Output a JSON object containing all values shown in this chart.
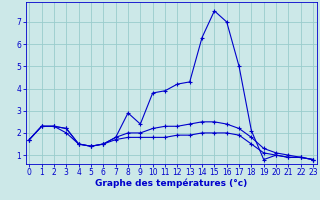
{
  "xlabel": "Graphe des températures (°c)",
  "background_color": "#cce8e8",
  "grid_color": "#99cccc",
  "line_color": "#0000cc",
  "x_ticks": [
    0,
    1,
    2,
    3,
    4,
    5,
    6,
    7,
    8,
    9,
    10,
    11,
    12,
    13,
    14,
    15,
    16,
    17,
    18,
    19,
    20,
    21,
    22,
    23
  ],
  "y_ticks": [
    1,
    2,
    3,
    4,
    5,
    6,
    7
  ],
  "xlim": [
    -0.3,
    23.3
  ],
  "ylim": [
    0.6,
    7.9
  ],
  "series1_x": [
    0,
    1,
    2,
    3,
    4,
    5,
    6,
    7,
    8,
    9,
    10,
    11,
    12,
    13,
    14,
    15,
    16,
    17,
    18,
    19,
    20,
    21,
    22,
    23
  ],
  "series1_y": [
    1.7,
    2.3,
    2.3,
    2.2,
    1.5,
    1.4,
    1.5,
    1.8,
    2.9,
    2.4,
    3.8,
    3.9,
    4.2,
    4.3,
    6.3,
    7.5,
    7.0,
    5.0,
    2.1,
    0.8,
    1.0,
    0.9,
    0.9,
    0.8
  ],
  "series2_x": [
    0,
    1,
    2,
    3,
    4,
    5,
    6,
    7,
    8,
    9,
    10,
    11,
    12,
    13,
    14,
    15,
    16,
    17,
    18,
    19,
    20,
    21,
    22,
    23
  ],
  "series2_y": [
    1.7,
    2.3,
    2.3,
    2.0,
    1.5,
    1.4,
    1.5,
    1.7,
    1.8,
    1.8,
    1.8,
    1.8,
    1.9,
    1.9,
    2.0,
    2.0,
    2.0,
    1.9,
    1.5,
    1.1,
    1.0,
    0.9,
    0.9,
    0.8
  ],
  "series3_x": [
    0,
    1,
    2,
    3,
    4,
    5,
    6,
    7,
    8,
    9,
    10,
    11,
    12,
    13,
    14,
    15,
    16,
    17,
    18,
    19,
    20,
    21,
    22,
    23
  ],
  "series3_y": [
    1.7,
    2.3,
    2.3,
    2.2,
    1.5,
    1.4,
    1.5,
    1.8,
    2.0,
    2.0,
    2.2,
    2.3,
    2.3,
    2.4,
    2.5,
    2.5,
    2.4,
    2.2,
    1.8,
    1.3,
    1.1,
    1.0,
    0.9,
    0.8
  ],
  "xlabel_fontsize": 6.5,
  "tick_fontsize": 5.5,
  "linewidth": 0.8,
  "markersize": 2.5
}
